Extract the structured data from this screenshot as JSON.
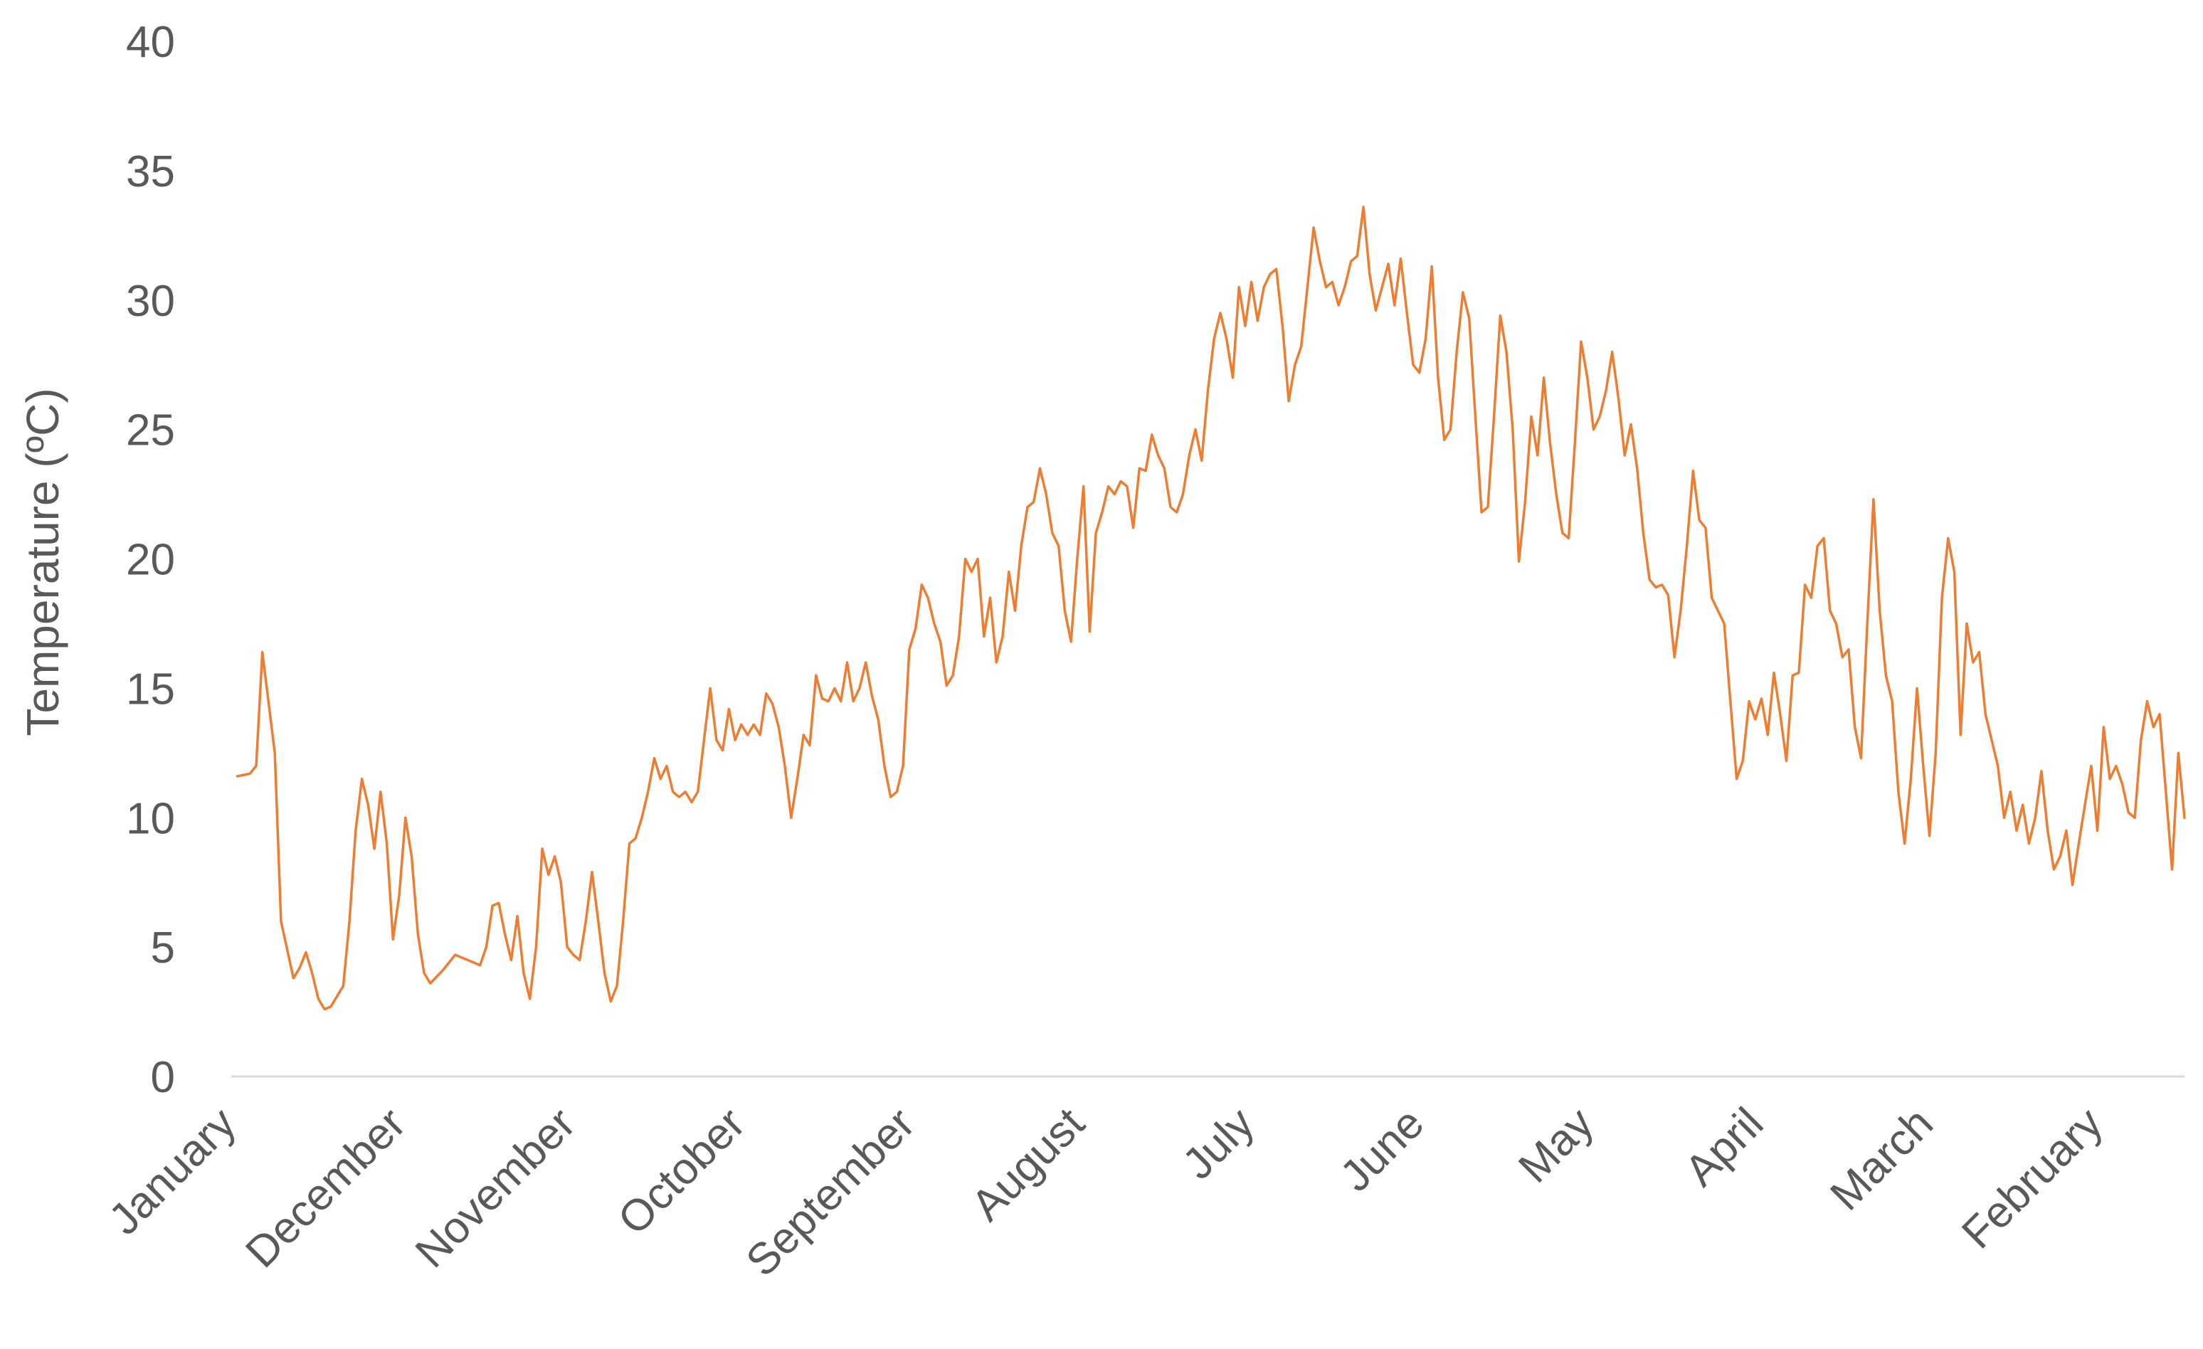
{
  "chart_data": {
    "type": "line",
    "title": "",
    "xlabel": "",
    "ylabel": "Temperature (ºC)",
    "ylim": [
      0,
      40
    ],
    "yticks": [
      0,
      5,
      10,
      15,
      20,
      25,
      30,
      35,
      40
    ],
    "x_tick_labels": [
      "January",
      "December",
      "November",
      "October",
      "September",
      "August",
      "July",
      "June",
      "May",
      "April",
      "March",
      "February"
    ],
    "grid": false,
    "legend": "none",
    "colors": {
      "series": "#ED7D31",
      "axis": "#D9D9D9",
      "text": "#595959"
    },
    "series": [
      {
        "name": "",
        "key_points": [
          [
            1,
            11.6
          ],
          [
            3,
            11.7
          ],
          [
            4,
            12.0
          ],
          [
            5,
            16.4
          ],
          [
            7,
            12.5
          ],
          [
            8,
            6.0
          ],
          [
            10,
            3.8
          ],
          [
            11,
            4.2
          ],
          [
            12,
            4.8
          ],
          [
            13,
            4.0
          ],
          [
            14,
            3.0
          ],
          [
            15,
            2.6
          ],
          [
            16,
            2.7
          ],
          [
            18,
            3.5
          ],
          [
            19,
            6.0
          ],
          [
            20,
            9.5
          ],
          [
            21,
            11.5
          ],
          [
            22,
            10.5
          ],
          [
            23,
            8.8
          ],
          [
            24,
            11.0
          ],
          [
            25,
            9.0
          ],
          [
            26,
            5.3
          ],
          [
            27,
            7.0
          ],
          [
            28,
            10.0
          ],
          [
            29,
            8.5
          ],
          [
            30,
            5.5
          ],
          [
            31,
            4.0
          ],
          [
            32,
            3.6
          ],
          [
            34,
            4.1
          ],
          [
            36,
            4.7
          ],
          [
            38,
            4.5
          ],
          [
            40,
            4.3
          ],
          [
            41,
            5.0
          ],
          [
            42,
            6.6
          ],
          [
            43,
            6.7
          ],
          [
            44,
            5.5
          ],
          [
            45,
            4.5
          ],
          [
            46,
            6.2
          ],
          [
            47,
            4.0
          ],
          [
            48,
            3.0
          ],
          [
            49,
            5.0
          ],
          [
            50,
            8.8
          ],
          [
            51,
            7.8
          ],
          [
            52,
            8.5
          ],
          [
            53,
            7.5
          ],
          [
            54,
            5.0
          ],
          [
            55,
            4.7
          ],
          [
            56,
            4.5
          ],
          [
            57,
            6.0
          ],
          [
            58,
            7.9
          ],
          [
            59,
            6.0
          ],
          [
            60,
            4.0
          ],
          [
            61,
            2.9
          ],
          [
            62,
            3.5
          ],
          [
            63,
            6.0
          ],
          [
            64,
            9.0
          ],
          [
            65,
            9.2
          ],
          [
            66,
            10.0
          ],
          [
            67,
            11.0
          ],
          [
            68,
            12.3
          ],
          [
            69,
            11.5
          ],
          [
            70,
            12.0
          ],
          [
            71,
            11.0
          ],
          [
            72,
            10.8
          ],
          [
            73,
            11.0
          ],
          [
            74,
            10.6
          ],
          [
            75,
            11.0
          ],
          [
            76,
            13.0
          ],
          [
            77,
            15.0
          ],
          [
            78,
            13.0
          ],
          [
            79,
            12.6
          ],
          [
            80,
            14.2
          ],
          [
            81,
            13.0
          ],
          [
            82,
            13.6
          ],
          [
            83,
            13.2
          ],
          [
            84,
            13.6
          ],
          [
            85,
            13.2
          ],
          [
            86,
            14.8
          ],
          [
            87,
            14.4
          ],
          [
            88,
            13.5
          ],
          [
            89,
            12.0
          ],
          [
            90,
            10.0
          ],
          [
            91,
            11.5
          ],
          [
            92,
            13.2
          ],
          [
            93,
            12.8
          ],
          [
            94,
            15.5
          ],
          [
            95,
            14.6
          ],
          [
            96,
            14.5
          ],
          [
            97,
            15.0
          ],
          [
            98,
            14.5
          ],
          [
            99,
            16.0
          ],
          [
            100,
            14.5
          ],
          [
            101,
            15.0
          ],
          [
            102,
            16.0
          ],
          [
            103,
            14.7
          ],
          [
            104,
            13.8
          ],
          [
            105,
            12.0
          ],
          [
            106,
            10.8
          ],
          [
            107,
            11.0
          ],
          [
            108,
            12.0
          ],
          [
            109,
            16.5
          ],
          [
            110,
            17.3
          ],
          [
            111,
            19.0
          ],
          [
            112,
            18.5
          ],
          [
            113,
            17.5
          ],
          [
            114,
            16.8
          ],
          [
            115,
            15.1
          ],
          [
            116,
            15.5
          ],
          [
            117,
            17.0
          ],
          [
            118,
            20.0
          ],
          [
            119,
            19.5
          ],
          [
            120,
            20.0
          ],
          [
            121,
            17.0
          ],
          [
            122,
            18.5
          ],
          [
            123,
            16.0
          ],
          [
            124,
            17.0
          ],
          [
            125,
            19.5
          ],
          [
            126,
            18.0
          ],
          [
            127,
            20.5
          ],
          [
            128,
            22.0
          ],
          [
            129,
            22.2
          ],
          [
            130,
            23.5
          ],
          [
            131,
            22.5
          ],
          [
            132,
            21.0
          ],
          [
            133,
            20.5
          ],
          [
            134,
            18.0
          ],
          [
            135,
            16.8
          ],
          [
            136,
            20.0
          ],
          [
            137,
            22.8
          ],
          [
            138,
            17.2
          ],
          [
            139,
            21.0
          ],
          [
            140,
            21.8
          ],
          [
            141,
            22.8
          ],
          [
            142,
            22.5
          ],
          [
            143,
            23.0
          ],
          [
            144,
            22.8
          ],
          [
            145,
            21.2
          ],
          [
            146,
            23.5
          ],
          [
            147,
            23.4
          ],
          [
            148,
            24.8
          ],
          [
            149,
            24.0
          ],
          [
            150,
            23.5
          ],
          [
            151,
            22.0
          ],
          [
            152,
            21.8
          ],
          [
            153,
            22.5
          ],
          [
            154,
            24.0
          ],
          [
            155,
            25.0
          ],
          [
            156,
            23.8
          ],
          [
            157,
            26.5
          ],
          [
            158,
            28.5
          ],
          [
            159,
            29.5
          ],
          [
            160,
            28.5
          ],
          [
            161,
            27.0
          ],
          [
            162,
            30.5
          ],
          [
            163,
            29.0
          ],
          [
            164,
            30.7
          ],
          [
            165,
            29.2
          ],
          [
            166,
            30.5
          ],
          [
            167,
            31.0
          ],
          [
            168,
            31.2
          ],
          [
            169,
            29.0
          ],
          [
            170,
            26.1
          ],
          [
            171,
            27.5
          ],
          [
            172,
            28.2
          ],
          [
            173,
            30.5
          ],
          [
            174,
            32.8
          ],
          [
            175,
            31.5
          ],
          [
            176,
            30.5
          ],
          [
            177,
            30.7
          ],
          [
            178,
            29.8
          ],
          [
            179,
            30.5
          ],
          [
            180,
            31.5
          ],
          [
            181,
            31.7
          ],
          [
            182,
            33.6
          ],
          [
            183,
            31.0
          ],
          [
            184,
            29.6
          ],
          [
            185,
            30.5
          ],
          [
            186,
            31.4
          ],
          [
            187,
            29.8
          ],
          [
            188,
            31.6
          ],
          [
            189,
            29.5
          ],
          [
            190,
            27.5
          ],
          [
            191,
            27.2
          ],
          [
            192,
            28.5
          ],
          [
            193,
            31.3
          ],
          [
            194,
            27.0
          ],
          [
            195,
            24.6
          ],
          [
            196,
            25.0
          ],
          [
            197,
            28.0
          ],
          [
            198,
            30.3
          ],
          [
            199,
            29.3
          ],
          [
            200,
            25.5
          ],
          [
            201,
            21.8
          ],
          [
            202,
            22.0
          ],
          [
            203,
            25.5
          ],
          [
            204,
            29.4
          ],
          [
            205,
            28.0
          ],
          [
            206,
            25.0
          ],
          [
            207,
            19.9
          ],
          [
            208,
            22.2
          ],
          [
            209,
            25.5
          ],
          [
            210,
            24.0
          ],
          [
            211,
            27.0
          ],
          [
            212,
            24.5
          ],
          [
            213,
            22.5
          ],
          [
            214,
            21.0
          ],
          [
            215,
            20.8
          ],
          [
            216,
            24.5
          ],
          [
            217,
            28.4
          ],
          [
            218,
            27.0
          ],
          [
            219,
            25.0
          ],
          [
            220,
            25.5
          ],
          [
            221,
            26.5
          ],
          [
            222,
            28.0
          ],
          [
            223,
            26.2
          ],
          [
            224,
            24.0
          ],
          [
            225,
            25.2
          ],
          [
            226,
            23.5
          ],
          [
            227,
            21.0
          ],
          [
            228,
            19.2
          ],
          [
            229,
            18.9
          ],
          [
            230,
            19.0
          ],
          [
            231,
            18.6
          ],
          [
            232,
            16.2
          ],
          [
            233,
            18.0
          ],
          [
            234,
            20.5
          ],
          [
            235,
            23.4
          ],
          [
            236,
            21.5
          ],
          [
            237,
            21.2
          ],
          [
            238,
            18.5
          ],
          [
            239,
            18.0
          ],
          [
            240,
            17.5
          ],
          [
            241,
            14.5
          ],
          [
            242,
            11.5
          ],
          [
            243,
            12.2
          ],
          [
            244,
            14.5
          ],
          [
            245,
            13.8
          ],
          [
            246,
            14.6
          ],
          [
            247,
            13.2
          ],
          [
            248,
            15.6
          ],
          [
            249,
            14.0
          ],
          [
            250,
            12.2
          ],
          [
            251,
            15.5
          ],
          [
            252,
            15.6
          ],
          [
            253,
            19.0
          ],
          [
            254,
            18.5
          ],
          [
            255,
            20.5
          ],
          [
            256,
            20.8
          ],
          [
            257,
            18.0
          ],
          [
            258,
            17.5
          ],
          [
            259,
            16.2
          ],
          [
            260,
            16.5
          ],
          [
            261,
            13.5
          ],
          [
            262,
            12.3
          ],
          [
            263,
            17.5
          ],
          [
            264,
            22.3
          ],
          [
            265,
            18.0
          ],
          [
            266,
            15.5
          ],
          [
            267,
            14.5
          ],
          [
            268,
            11.0
          ],
          [
            269,
            9.0
          ],
          [
            270,
            11.5
          ],
          [
            271,
            15.0
          ],
          [
            272,
            12.0
          ],
          [
            273,
            9.3
          ],
          [
            274,
            12.5
          ],
          [
            275,
            18.5
          ],
          [
            276,
            20.8
          ],
          [
            277,
            19.5
          ],
          [
            278,
            13.2
          ],
          [
            279,
            17.5
          ],
          [
            280,
            16.0
          ],
          [
            281,
            16.4
          ],
          [
            282,
            14.0
          ],
          [
            283,
            13.0
          ],
          [
            284,
            12.0
          ],
          [
            285,
            10.0
          ],
          [
            286,
            11.0
          ],
          [
            287,
            9.5
          ],
          [
            288,
            10.5
          ],
          [
            289,
            9.0
          ],
          [
            290,
            10.0
          ],
          [
            291,
            11.8
          ],
          [
            292,
            9.5
          ],
          [
            293,
            8.0
          ],
          [
            294,
            8.5
          ],
          [
            295,
            9.5
          ],
          [
            296,
            7.4
          ],
          [
            297,
            9.0
          ],
          [
            298,
            10.5
          ],
          [
            299,
            12.0
          ],
          [
            300,
            9.5
          ],
          [
            301,
            13.5
          ],
          [
            302,
            11.5
          ],
          [
            303,
            12.0
          ],
          [
            304,
            11.3
          ],
          [
            305,
            10.2
          ],
          [
            306,
            10.0
          ],
          [
            307,
            13.0
          ],
          [
            308,
            14.5
          ],
          [
            309,
            13.5
          ],
          [
            310,
            14.0
          ],
          [
            311,
            11.0
          ],
          [
            312,
            8.0
          ],
          [
            313,
            12.5
          ],
          [
            314,
            10.0
          ]
        ]
      }
    ]
  }
}
